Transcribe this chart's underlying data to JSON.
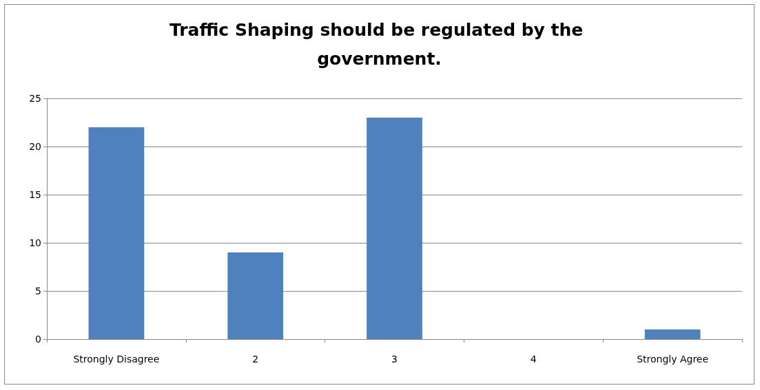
{
  "chart_data": {
    "type": "bar",
    "title": "Traffic Shaping should be regulated by the government.",
    "categories": [
      "Strongly Disagree",
      "2",
      "3",
      "4",
      "Strongly Agree"
    ],
    "values": [
      22,
      9,
      23,
      0,
      1
    ],
    "color": "#4f81bd",
    "ylim": [
      0,
      25
    ],
    "yticks": [
      0,
      5,
      10,
      15,
      20,
      25
    ],
    "grid": "y"
  }
}
